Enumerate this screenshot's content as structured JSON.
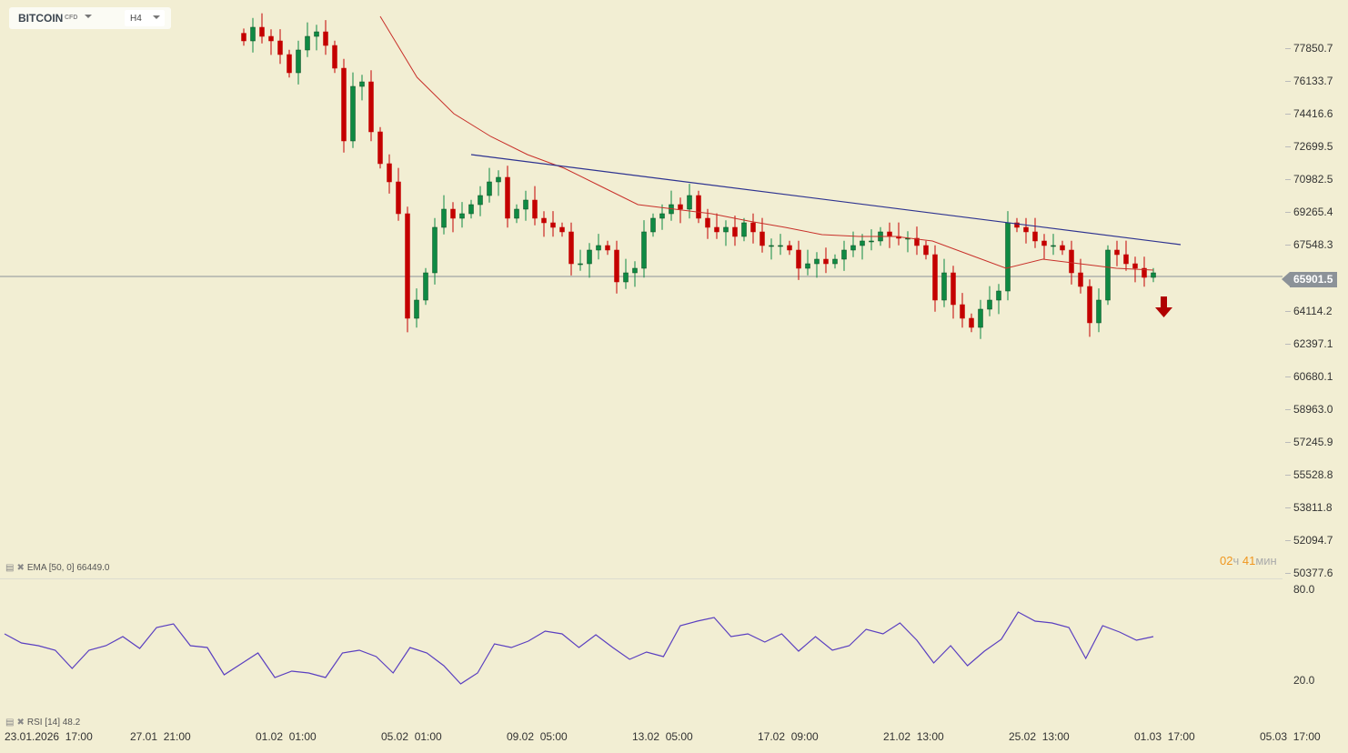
{
  "header": {
    "symbol": "BITCOIN",
    "symbol_type": "CFD",
    "timeframe": "H4"
  },
  "colors": {
    "up": "#0f8a43",
    "down": "#c40000",
    "ema": "#c8302a",
    "trendline": "#2e3390",
    "rsi": "#5a3fc0",
    "price_line": "#8c9298",
    "timer_accent": "#f0961e"
  },
  "current_price": "65901.5",
  "timer": {
    "hours": "02",
    "hours_unit": "ч",
    "minutes": "41",
    "minutes_unit": "мин"
  },
  "indicators": {
    "ema_label": "EMA [50, 0] 66449.0",
    "rsi_label": "RSI [14] 48.2"
  },
  "signal": {
    "direction": "down",
    "icon": "arrow-down-icon"
  },
  "chart_data": [
    {
      "type": "candlestick",
      "title": "BITCOIN CFD H4",
      "price_axis": [
        "77850.7",
        "76133.7",
        "74416.6",
        "72699.5",
        "70982.5",
        "69265.4",
        "67548.3",
        "65901.5",
        "64114.2",
        "62397.1",
        "60680.1",
        "58963.0",
        "57245.9",
        "55528.8",
        "53811.8",
        "52094.7",
        "50377.6"
      ],
      "ylim": [
        50377.6,
        77850.7
      ],
      "x_labels": [
        "23.01.2026  17:00",
        "27.01  21:00",
        "01.02  01:00",
        "05.02  01:00",
        "09.02  05:00",
        "13.02  05:00",
        "17.02  09:00",
        "21.02  13:00",
        "25.02  13:00",
        "01.03  17:00",
        "05.03  17:00"
      ],
      "closes": [
        78232,
        78946,
        78470,
        78232,
        77518,
        76565,
        77756,
        78470,
        78708,
        77994,
        76803,
        72995,
        75851,
        76089,
        73471,
        71805,
        70852,
        69186,
        63711,
        64663,
        66091,
        68472,
        69424,
        68948,
        69186,
        69662,
        70138,
        70852,
        71090,
        68948,
        69424,
        69900,
        68948,
        68710,
        68472,
        68234,
        66567,
        66567,
        67282,
        67520,
        67282,
        65615,
        66091,
        66329,
        68234,
        68948,
        69186,
        69662,
        69424,
        70138,
        68948,
        68472,
        68234,
        68472,
        67996,
        68710,
        68234,
        67520,
        67520,
        67520,
        67282,
        66329,
        66567,
        66805,
        66567,
        66805,
        67282,
        67520,
        67758,
        67758,
        68234,
        67996,
        67901,
        67901,
        67520,
        67044,
        64663,
        66091,
        64425,
        63711,
        63235,
        64187,
        64663,
        65139,
        68710,
        68472,
        68234,
        67758,
        67520,
        67520,
        67282,
        66091,
        65377,
        63473,
        64663,
        67282,
        67044,
        66567,
        66329,
        65853,
        66091
      ],
      "ema": {
        "name": "EMA 50",
        "start_index": 15,
        "values": [
          79517,
          76327,
          74423,
          73233,
          72281,
          71566,
          70614,
          69662,
          69424,
          69186,
          68805,
          68472,
          68091,
          67996,
          67996,
          67758,
          67044,
          66329,
          66805,
          66567,
          66329,
          66234
        ],
        "end_index": 100
      },
      "trendline": {
        "from": [
          25,
          72281
        ],
        "to": [
          103,
          67567
        ]
      }
    },
    {
      "type": "line",
      "title": "RSI [14]",
      "yticks": [
        "80.0",
        "20.0"
      ],
      "ylim": [
        20,
        80
      ],
      "values": [
        50.6,
        44.6,
        42.8,
        39.8,
        27.8,
        39.8,
        42.8,
        48.8,
        41,
        54.8,
        57.2,
        42.8,
        41.6,
        23.6,
        30.8,
        38,
        21.8,
        26,
        24.8,
        21.8,
        38,
        39.8,
        35.6,
        24.8,
        41.6,
        38,
        29.6,
        17.6,
        24.8,
        44,
        41.6,
        45.8,
        52.4,
        50.6,
        41.6,
        50,
        41.6,
        33.8,
        38.6,
        35.6,
        56,
        59,
        61.4,
        48.8,
        50.6,
        45.2,
        50.6,
        39.2,
        48.8,
        39.8,
        42.8,
        53.6,
        50.6,
        57.8,
        46.4,
        31.4,
        42.8,
        29.6,
        39.2,
        47,
        65,
        59,
        57.8,
        54.8,
        34.4,
        56,
        51.8,
        46.4,
        48.8
      ]
    }
  ]
}
